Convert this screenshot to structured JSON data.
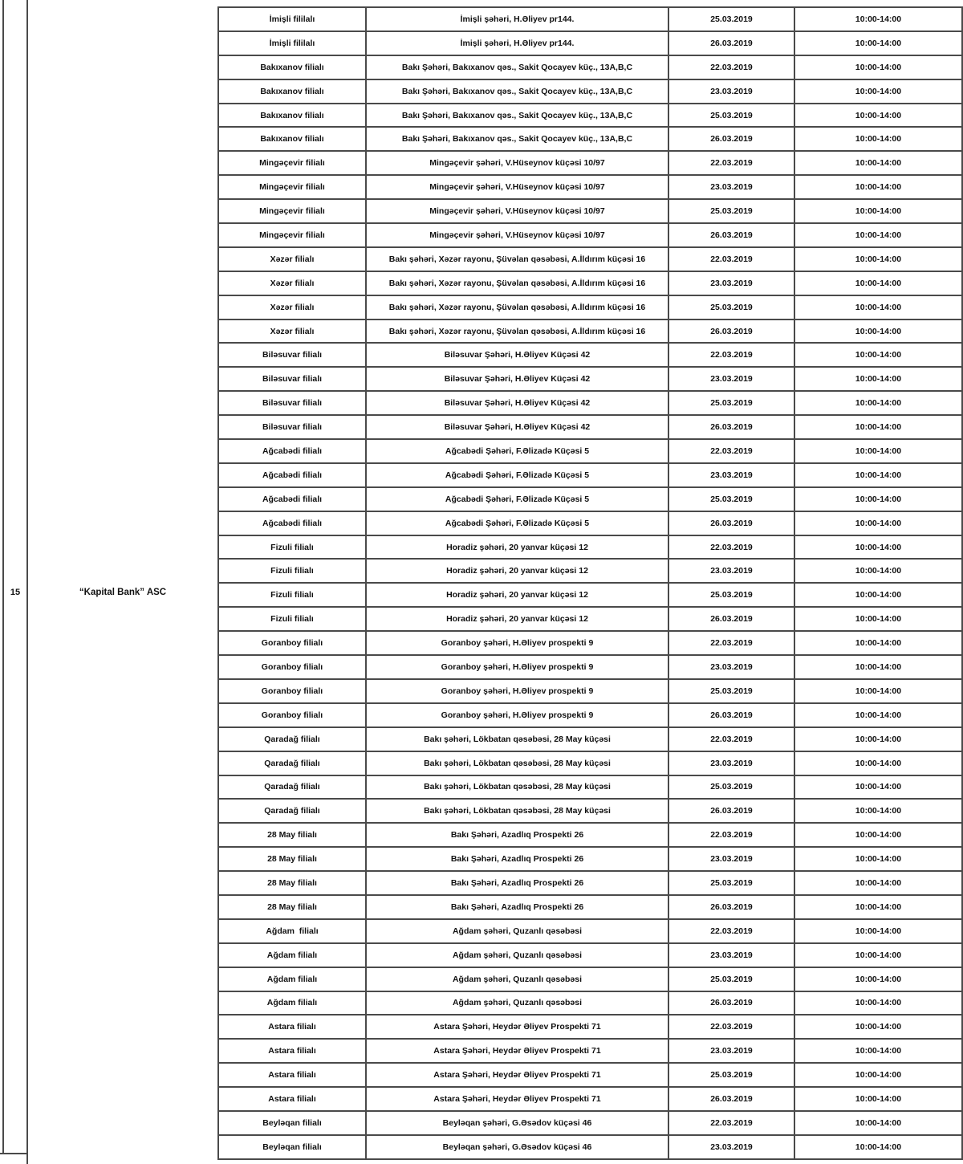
{
  "page": {
    "row_number": "15",
    "bank_name": "“Kapital Bank” ASC"
  },
  "table": {
    "keys": [
      "branch",
      "address",
      "date",
      "time"
    ],
    "rows": [
      {
        "branch": "İmişli fililalı",
        "address": "İmişli şəhəri, H.Əliyev pr144.",
        "date": "25.03.2019",
        "time": "10:00-14:00"
      },
      {
        "branch": "İmişli fililalı",
        "address": "İmişli şəhəri, H.Əliyev pr144.",
        "date": "26.03.2019",
        "time": "10:00-14:00"
      },
      {
        "branch": "Bakıxanov filialı",
        "address": "Bakı Şəhəri, Bakıxanov qəs., Sakit Qocayev küç., 13A,B,C",
        "date": "22.03.2019",
        "time": "10:00-14:00"
      },
      {
        "branch": "Bakıxanov filialı",
        "address": "Bakı Şəhəri, Bakıxanov qəs., Sakit Qocayev küç., 13A,B,C",
        "date": "23.03.2019",
        "time": "10:00-14:00"
      },
      {
        "branch": "Bakıxanov filialı",
        "address": "Bakı Şəhəri, Bakıxanov qəs., Sakit Qocayev küç., 13A,B,C",
        "date": "25.03.2019",
        "time": "10:00-14:00"
      },
      {
        "branch": "Bakıxanov filialı",
        "address": "Bakı Şəhəri, Bakıxanov qəs., Sakit Qocayev küç., 13A,B,C",
        "date": "26.03.2019",
        "time": "10:00-14:00"
      },
      {
        "branch": "Mingəçevir filialı",
        "address": "Mingəçevir şəhəri, V.Hüseynov küçəsi 10/97",
        "date": "22.03.2019",
        "time": "10:00-14:00"
      },
      {
        "branch": "Mingəçevir filialı",
        "address": "Mingəçevir şəhəri, V.Hüseynov küçəsi 10/97",
        "date": "23.03.2019",
        "time": "10:00-14:00"
      },
      {
        "branch": "Mingəçevir filialı",
        "address": "Mingəçevir şəhəri, V.Hüseynov küçəsi 10/97",
        "date": "25.03.2019",
        "time": "10:00-14:00"
      },
      {
        "branch": "Mingəçevir filialı",
        "address": "Mingəçevir şəhəri, V.Hüseynov küçəsi 10/97",
        "date": "26.03.2019",
        "time": "10:00-14:00"
      },
      {
        "branch": "Xəzər filialı",
        "address": "Bakı şəhəri, Xəzər rayonu, Şüvəlan qəsəbəsi, A.İldırım küçəsi 16",
        "date": "22.03.2019",
        "time": "10:00-14:00"
      },
      {
        "branch": "Xəzər filialı",
        "address": "Bakı şəhəri, Xəzər rayonu, Şüvəlan qəsəbəsi, A.İldırım küçəsi 16",
        "date": "23.03.2019",
        "time": "10:00-14:00"
      },
      {
        "branch": "Xəzər filialı",
        "address": "Bakı şəhəri, Xəzər rayonu, Şüvəlan qəsəbəsi, A.İldırım küçəsi 16",
        "date": "25.03.2019",
        "time": "10:00-14:00"
      },
      {
        "branch": "Xəzər filialı",
        "address": "Bakı şəhəri, Xəzər rayonu, Şüvəlan qəsəbəsi, A.İldırım küçəsi 16",
        "date": "26.03.2019",
        "time": "10:00-14:00"
      },
      {
        "branch": "Biləsuvar filialı",
        "address": "Biləsuvar Şəhəri, H.Əliyev Küçəsi 42",
        "date": "22.03.2019",
        "time": "10:00-14:00"
      },
      {
        "branch": "Biləsuvar filialı",
        "address": "Biləsuvar Şəhəri, H.Əliyev Küçəsi 42",
        "date": "23.03.2019",
        "time": "10:00-14:00"
      },
      {
        "branch": "Biləsuvar filialı",
        "address": "Biləsuvar Şəhəri, H.Əliyev Küçəsi 42",
        "date": "25.03.2019",
        "time": "10:00-14:00"
      },
      {
        "branch": "Biləsuvar filialı",
        "address": "Biləsuvar Şəhəri, H.Əliyev Küçəsi 42",
        "date": "26.03.2019",
        "time": "10:00-14:00"
      },
      {
        "branch": "Ağcabədi filialı",
        "address": "Ağcabədi Şəhəri, F.Əlizadə Küçəsi 5",
        "date": "22.03.2019",
        "time": "10:00-14:00"
      },
      {
        "branch": "Ağcabədi filialı",
        "address": "Ağcabədi Şəhəri, F.Əlizadə Küçəsi 5",
        "date": "23.03.2019",
        "time": "10:00-14:00"
      },
      {
        "branch": "Ağcabədi filialı",
        "address": "Ağcabədi Şəhəri, F.Əlizadə Küçəsi 5",
        "date": "25.03.2019",
        "time": "10:00-14:00"
      },
      {
        "branch": "Ağcabədi filialı",
        "address": "Ağcabədi Şəhəri, F.Əlizadə Küçəsi 5",
        "date": "26.03.2019",
        "time": "10:00-14:00"
      },
      {
        "branch": "Fizuli filialı",
        "address": "Horadiz şəhəri, 20 yanvar küçəsi 12",
        "date": "22.03.2019",
        "time": "10:00-14:00"
      },
      {
        "branch": "Fizuli filialı",
        "address": "Horadiz şəhəri, 20 yanvar küçəsi 12",
        "date": "23.03.2019",
        "time": "10:00-14:00"
      },
      {
        "branch": "Fizuli filialı",
        "address": "Horadiz şəhəri, 20 yanvar küçəsi 12",
        "date": "25.03.2019",
        "time": "10:00-14:00"
      },
      {
        "branch": "Fizuli filialı",
        "address": "Horadiz şəhəri, 20 yanvar küçəsi 12",
        "date": "26.03.2019",
        "time": "10:00-14:00"
      },
      {
        "branch": "Goranboy filialı",
        "address": "Goranboy şəhəri, H.Əliyev prospekti 9",
        "date": "22.03.2019",
        "time": "10:00-14:00"
      },
      {
        "branch": "Goranboy filialı",
        "address": "Goranboy şəhəri, H.Əliyev prospekti 9",
        "date": "23.03.2019",
        "time": "10:00-14:00"
      },
      {
        "branch": "Goranboy filialı",
        "address": "Goranboy şəhəri, H.Əliyev prospekti 9",
        "date": "25.03.2019",
        "time": "10:00-14:00"
      },
      {
        "branch": "Goranboy filialı",
        "address": "Goranboy şəhəri, H.Əliyev prospekti 9",
        "date": "26.03.2019",
        "time": "10:00-14:00"
      },
      {
        "branch": "Qaradağ filialı",
        "address": "Bakı şəhəri, Lökbatan qəsəbəsi, 28 May küçəsi",
        "date": "22.03.2019",
        "time": "10:00-14:00"
      },
      {
        "branch": "Qaradağ filialı",
        "address": "Bakı şəhəri, Lökbatan qəsəbəsi, 28 May küçəsi",
        "date": "23.03.2019",
        "time": "10:00-14:00"
      },
      {
        "branch": "Qaradağ filialı",
        "address": "Bakı şəhəri, Lökbatan qəsəbəsi, 28 May küçəsi",
        "date": "25.03.2019",
        "time": "10:00-14:00"
      },
      {
        "branch": "Qaradağ filialı",
        "address": "Bakı şəhəri, Lökbatan qəsəbəsi, 28 May küçəsi",
        "date": "26.03.2019",
        "time": "10:00-14:00"
      },
      {
        "branch": "28 May filialı",
        "address": "Bakı Şəhəri, Azadlıq Prospekti 26",
        "date": "22.03.2019",
        "time": "10:00-14:00"
      },
      {
        "branch": "28 May filialı",
        "address": "Bakı Şəhəri, Azadlıq Prospekti 26",
        "date": "23.03.2019",
        "time": "10:00-14:00"
      },
      {
        "branch": "28 May filialı",
        "address": "Bakı Şəhəri, Azadlıq Prospekti 26",
        "date": "25.03.2019",
        "time": "10:00-14:00"
      },
      {
        "branch": "28 May filialı",
        "address": "Bakı Şəhəri, Azadlıq Prospekti 26",
        "date": "26.03.2019",
        "time": "10:00-14:00"
      },
      {
        "branch": "Ağdam  filialı",
        "address": "Ağdam şəhəri, Quzanlı qəsəbəsi",
        "date": "22.03.2019",
        "time": "10:00-14:00"
      },
      {
        "branch": "Ağdam filialı",
        "address": "Ağdam şəhəri, Quzanlı qəsəbəsi",
        "date": "23.03.2019",
        "time": "10:00-14:00"
      },
      {
        "branch": "Ağdam filialı",
        "address": "Ağdam şəhəri, Quzanlı qəsəbəsi",
        "date": "25.03.2019",
        "time": "10:00-14:00"
      },
      {
        "branch": "Ağdam filialı",
        "address": "Ağdam şəhəri, Quzanlı qəsəbəsi",
        "date": "26.03.2019",
        "time": "10:00-14:00"
      },
      {
        "branch": "Astara filialı",
        "address": "Astara Şəhəri, Heydər Əliyev Prospekti 71",
        "date": "22.03.2019",
        "time": "10:00-14:00"
      },
      {
        "branch": "Astara filialı",
        "address": "Astara Şəhəri, Heydər Əliyev Prospekti 71",
        "date": "23.03.2019",
        "time": "10:00-14:00"
      },
      {
        "branch": "Astara filialı",
        "address": "Astara Şəhəri, Heydər Əliyev Prospekti 71",
        "date": "25.03.2019",
        "time": "10:00-14:00"
      },
      {
        "branch": "Astara filialı",
        "address": "Astara Şəhəri, Heydər Əliyev Prospekti 71",
        "date": "26.03.2019",
        "time": "10:00-14:00"
      },
      {
        "branch": "Beyləqan filialı",
        "address": "Beyləqan şəhəri, G.Əsədov küçəsi 46",
        "date": "22.03.2019",
        "time": "10:00-14:00"
      },
      {
        "branch": "Beyləqan filialı",
        "address": "Beyləqan şəhəri, G.Əsədov küçəsi 46",
        "date": "23.03.2019",
        "time": "10:00-14:00"
      }
    ]
  }
}
